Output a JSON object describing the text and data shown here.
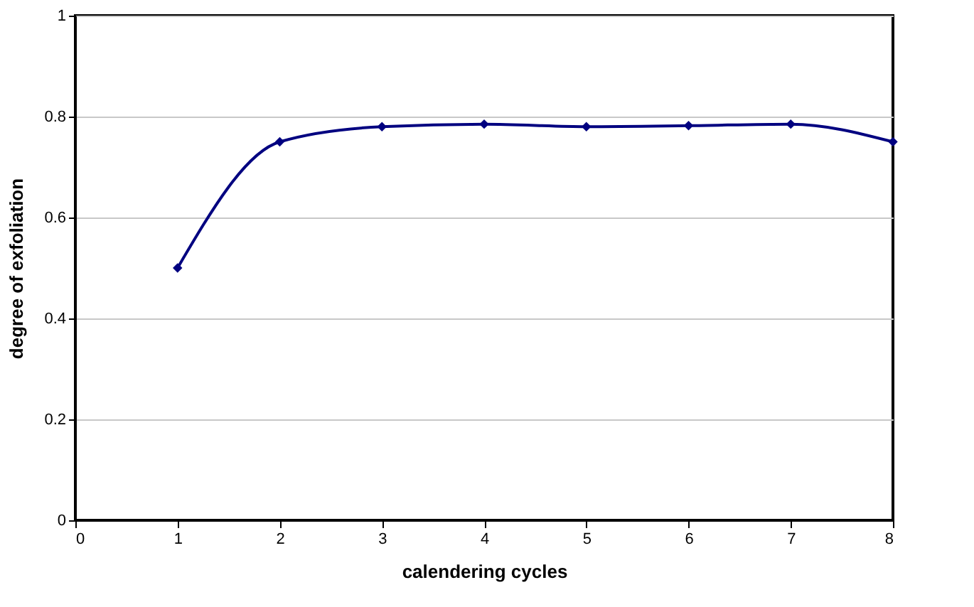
{
  "chart_data": {
    "type": "line",
    "xlabel": "calendering cycles",
    "ylabel": "degree of exfoliation",
    "x": [
      1,
      2,
      3,
      4,
      5,
      6,
      7,
      8
    ],
    "series": [
      {
        "color": "#000080",
        "values": [
          0.5,
          0.75,
          0.78,
          0.785,
          0.78,
          0.782,
          0.785,
          0.75
        ]
      }
    ],
    "xlim": [
      0,
      8
    ],
    "xticks": [
      0,
      1,
      2,
      3,
      4,
      5,
      6,
      7,
      8
    ],
    "ylim": [
      0,
      1
    ],
    "yticks": [
      0,
      0.2,
      0.4,
      0.6,
      0.8,
      1
    ],
    "grid": "y",
    "marker": "diamond",
    "line_style": "solid",
    "legend": false
  }
}
